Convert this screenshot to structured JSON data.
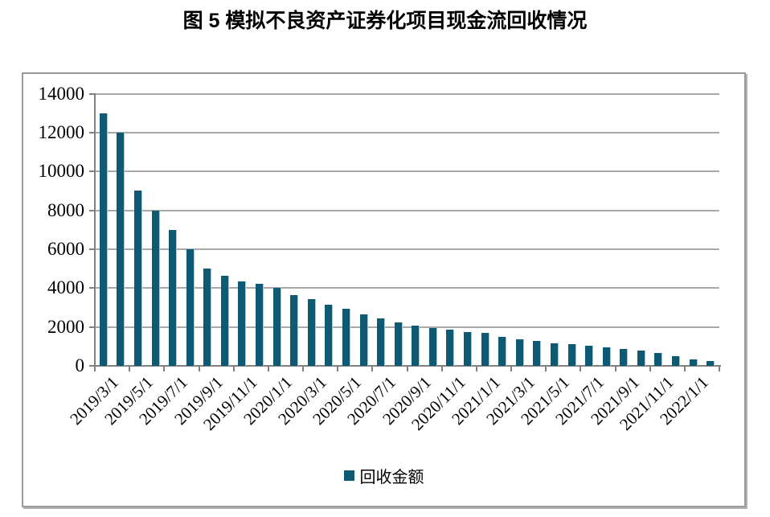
{
  "page": {
    "title": "图 5 模拟不良资产证券化项目现金流回收情况"
  },
  "colors": {
    "bar": "#0d5a72",
    "bar_edge_highlight": "#a3c8d8",
    "gridline": "#a9a9a9",
    "axis": "#808080",
    "frame_border": "#9a9a9a",
    "text": "#000000",
    "background": "#ffffff"
  },
  "legend": {
    "marker": "square-swatch",
    "label": "回收金额",
    "position": "bottom-center"
  },
  "chart_data": {
    "type": "bar",
    "title": "图 5 模拟不良资产证券化项目现金流回收情况",
    "xlabel": "",
    "ylabel": "",
    "ylim": [
      0,
      14000
    ],
    "y_ticks": [
      0,
      2000,
      4000,
      6000,
      8000,
      10000,
      12000,
      14000
    ],
    "grid": "horizontal",
    "legend_position": "bottom",
    "x_tick_label_rotation_deg": 45,
    "categories": [
      "2019/3/1",
      "2019/4/1",
      "2019/5/1",
      "2019/6/1",
      "2019/7/1",
      "2019/8/1",
      "2019/9/1",
      "2019/10/1",
      "2019/11/1",
      "2019/12/1",
      "2020/1/1",
      "2020/2/1",
      "2020/3/1",
      "2020/4/1",
      "2020/5/1",
      "2020/6/1",
      "2020/7/1",
      "2020/8/1",
      "2020/9/1",
      "2020/10/1",
      "2020/11/1",
      "2020/12/1",
      "2021/1/1",
      "2021/2/1",
      "2021/3/1",
      "2021/4/1",
      "2021/5/1",
      "2021/6/1",
      "2021/7/1",
      "2021/8/1",
      "2021/9/1",
      "2021/10/1",
      "2021/11/1",
      "2021/12/1",
      "2022/1/1",
      "2022/2/1"
    ],
    "x_tick_labels_shown": [
      "2019/3/1",
      "2019/5/1",
      "2019/7/1",
      "2019/9/1",
      "2019/11/1",
      "2020/1/1",
      "2020/3/1",
      "2020/5/1",
      "2020/7/1",
      "2020/9/1",
      "2020/11/1",
      "2021/1/1",
      "2021/3/1",
      "2021/5/1",
      "2021/7/1",
      "2021/9/1",
      "2021/11/1",
      "2022/1/1"
    ],
    "series": [
      {
        "name": "回收金额",
        "values": [
          13000,
          12000,
          9000,
          8000,
          7000,
          6000,
          5000,
          4650,
          4350,
          4200,
          4000,
          3650,
          3450,
          3150,
          2950,
          2650,
          2450,
          2250,
          2070,
          1950,
          1850,
          1750,
          1700,
          1480,
          1380,
          1270,
          1150,
          1100,
          1050,
          950,
          870,
          800,
          660,
          480,
          350,
          250
        ]
      }
    ]
  }
}
